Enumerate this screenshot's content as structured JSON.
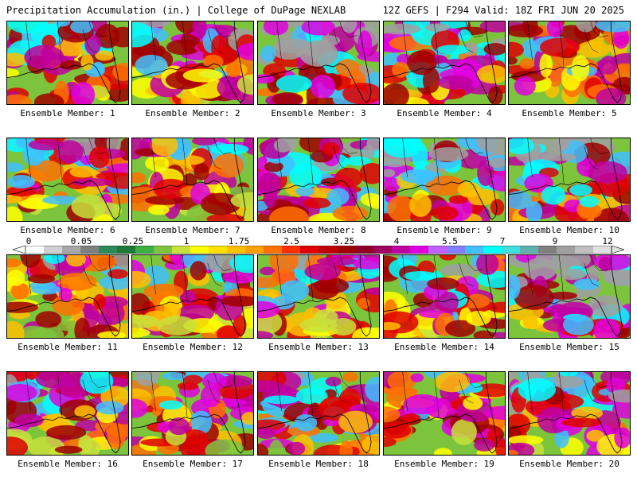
{
  "header": {
    "title": "Precipitation Accumulation (in.) | College of DuPage NEXLAB",
    "run_info": "12Z GEFS | F294 Valid: 18Z FRI JUN 20 2025"
  },
  "members": [
    {
      "label": "Ensemble Member: 1",
      "intensity": 0.55
    },
    {
      "label": "Ensemble Member: 2",
      "intensity": 0.55
    },
    {
      "label": "Ensemble Member: 3",
      "intensity": 0.85
    },
    {
      "label": "Ensemble Member: 4",
      "intensity": 0.65
    },
    {
      "label": "Ensemble Member: 5",
      "intensity": 0.55
    },
    {
      "label": "Ensemble Member: 6",
      "intensity": 0.6
    },
    {
      "label": "Ensemble Member: 7",
      "intensity": 0.45
    },
    {
      "label": "Ensemble Member: 8",
      "intensity": 0.7
    },
    {
      "label": "Ensemble Member: 9",
      "intensity": 0.75
    },
    {
      "label": "Ensemble Member: 10",
      "intensity": 0.85
    },
    {
      "label": "Ensemble Member: 11",
      "intensity": 0.5
    },
    {
      "label": "Ensemble Member: 12",
      "intensity": 0.55
    },
    {
      "label": "Ensemble Member: 13",
      "intensity": 0.55
    },
    {
      "label": "Ensemble Member: 14",
      "intensity": 0.6
    },
    {
      "label": "Ensemble Member: 15",
      "intensity": 0.85
    },
    {
      "label": "Ensemble Member: 16",
      "intensity": 0.6
    },
    {
      "label": "Ensemble Member: 17",
      "intensity": 0.55
    },
    {
      "label": "Ensemble Member: 18",
      "intensity": 0.6
    },
    {
      "label": "Ensemble Member: 19",
      "intensity": 0.45
    },
    {
      "label": "Ensemble Member: 20",
      "intensity": 0.75
    }
  ],
  "colorbar": {
    "ticks": [
      "0",
      "0.05",
      "0.25",
      "1",
      "1.75",
      "2.5",
      "3.25",
      "4",
      "5.5",
      "7",
      "9",
      "12"
    ],
    "colors": [
      "#ffffff",
      "#d0d0d0",
      "#a8a8a8",
      "#808080",
      "#2e8b57",
      "#1f7a3a",
      "#3cb043",
      "#7cc43c",
      "#c8e03c",
      "#ffff00",
      "#ffe000",
      "#ffc000",
      "#ffa000",
      "#ff7000",
      "#ff3000",
      "#e00000",
      "#c00000",
      "#a00000",
      "#900028",
      "#a00060",
      "#c000a0",
      "#e000e0",
      "#c060ff",
      "#8080ff",
      "#40c0ff",
      "#00ffff",
      "#40e0e0",
      "#60b0b0",
      "#808080",
      "#a0a0a0",
      "#c0c0c0",
      "#e0e0e0"
    ]
  }
}
